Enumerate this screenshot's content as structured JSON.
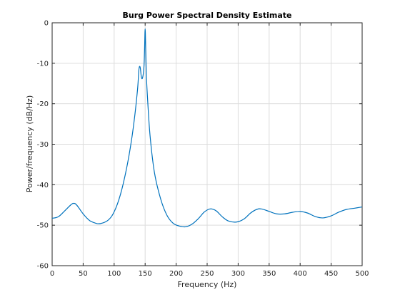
{
  "chart_data": {
    "type": "line",
    "title": "Burg Power Spectral Density Estimate",
    "xlabel": "Frequency (Hz)",
    "ylabel": "Power/frequency (dB/Hz)",
    "xlim": [
      0,
      500
    ],
    "ylim": [
      -60,
      0
    ],
    "xticks": [
      0,
      50,
      100,
      150,
      200,
      250,
      300,
      350,
      400,
      450,
      500
    ],
    "yticks": [
      0,
      -10,
      -20,
      -30,
      -40,
      -50,
      -60
    ],
    "grid": true,
    "line_color": "#0072BD",
    "series": [
      {
        "x": [
          0,
          10,
          20,
          30,
          35,
          40,
          50,
          60,
          70,
          78,
          90,
          100,
          110,
          120,
          128,
          134,
          138,
          140,
          142,
          144,
          146,
          148,
          149,
          150,
          151,
          152,
          154,
          158,
          165,
          175,
          185,
          195,
          205,
          215,
          225,
          235,
          245,
          252,
          258,
          265,
          275,
          285,
          298,
          310,
          320,
          330,
          338,
          350,
          362,
          375,
          388,
          400,
          412,
          425,
          437,
          450,
          462,
          475,
          488,
          500
        ],
        "y": [
          -48.3,
          -47.9,
          -46.5,
          -45.0,
          -44.6,
          -45.1,
          -47.2,
          -48.8,
          -49.5,
          -49.6,
          -48.8,
          -46.7,
          -42.5,
          -36.0,
          -29.0,
          -22.0,
          -16.0,
          -11.5,
          -11.0,
          -13.5,
          -13.5,
          -11.0,
          -7.0,
          -1.5,
          -7.0,
          -13.0,
          -19.0,
          -28.0,
          -37.0,
          -43.5,
          -47.5,
          -49.5,
          -50.2,
          -50.4,
          -49.8,
          -48.5,
          -46.8,
          -46.1,
          -46.0,
          -46.5,
          -48.0,
          -49.0,
          -49.2,
          -48.4,
          -47.0,
          -46.1,
          -46.0,
          -46.6,
          -47.2,
          -47.2,
          -46.8,
          -46.6,
          -47.0,
          -47.9,
          -48.2,
          -47.7,
          -46.8,
          -46.1,
          -45.8,
          -45.5
        ]
      }
    ]
  }
}
